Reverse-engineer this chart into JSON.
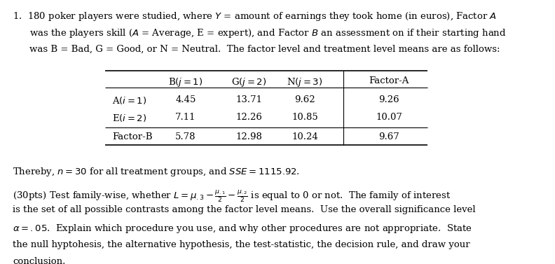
{
  "background_color": "#ffffff",
  "text_color": "#000000",
  "font_size": 9.5,
  "table_font_size": 9.5,
  "col_headers": [
    "B($j=1$)",
    "G($j=2$)",
    "N($j=3$)",
    "Factor-A"
  ],
  "row_headers": [
    "A($i=1$)",
    "E($i=2$)",
    "Factor-B"
  ],
  "table_data": [
    [
      "4.45",
      "13.71",
      "9.62",
      "9.26"
    ],
    [
      "7.11",
      "12.26",
      "10.85",
      "10.07"
    ],
    [
      "5.78",
      "12.98",
      "10.24",
      "9.67"
    ]
  ]
}
